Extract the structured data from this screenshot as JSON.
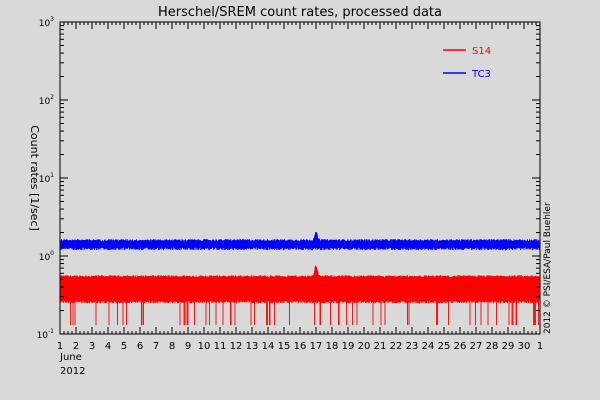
{
  "chart_data": {
    "type": "line",
    "title": "Herschel/SREM count rates, processed data",
    "ylabel": "Count rates [1/sec]",
    "xlabel_lines": [
      "June",
      "2012"
    ],
    "credit": "2012 © PSI/ESA/Paul Buehler",
    "y_scale": "log",
    "ylim_exponents": [
      -1,
      3
    ],
    "y_ticks": [
      {
        "base": "10",
        "exp": "3",
        "value": 1000
      },
      {
        "base": "10",
        "exp": "2",
        "value": 100
      },
      {
        "base": "10",
        "exp": "1",
        "value": 10
      },
      {
        "base": "10",
        "exp": "0",
        "value": 1
      },
      {
        "base": "10",
        "exp": "-1",
        "value": 0.1
      }
    ],
    "x_tick_labels": [
      "1",
      "2",
      "3",
      "4",
      "5",
      "6",
      "7",
      "8",
      "9",
      "10",
      "11",
      "12",
      "13",
      "14",
      "15",
      "16",
      "17",
      "18",
      "19",
      "20",
      "21",
      "22",
      "23",
      "24",
      "25",
      "26",
      "27",
      "28",
      "29",
      "30",
      "1"
    ],
    "grid": false,
    "legend_position": "top-right",
    "series": [
      {
        "name": "S14",
        "color": "#ff0000",
        "baseline": 0.4,
        "band_low": 0.26,
        "band_high": 0.55,
        "spike_min": 0.13,
        "peak": {
          "day": 17.0,
          "value": 0.75
        }
      },
      {
        "name": "TC3",
        "color": "#0000ff",
        "baseline": 1.4,
        "band_low": 1.25,
        "band_high": 1.6,
        "peak": {
          "day": 17.0,
          "value": 2.0
        }
      }
    ]
  }
}
